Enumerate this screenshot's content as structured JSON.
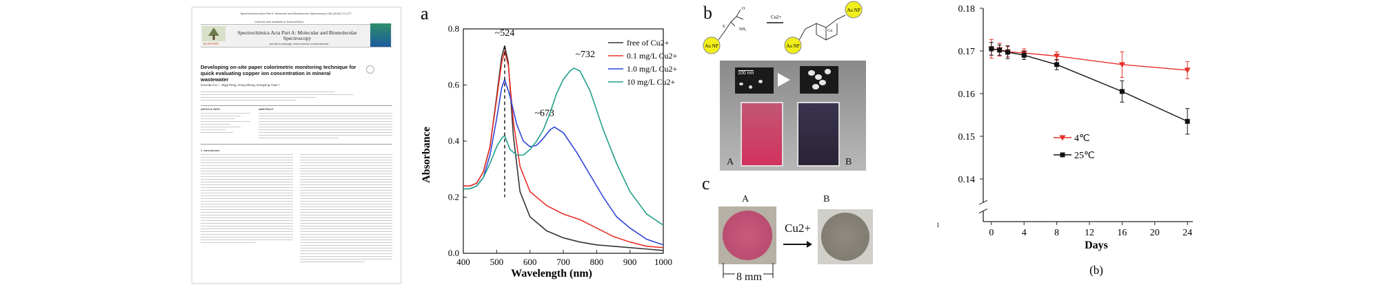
{
  "paper": {
    "journal_top_line": "Spectrochimica Acta Part A: Molecular and Biomolecular Spectroscopy 188 (2018) 271-277",
    "contents_line": "Contents lists available at ScienceDirect",
    "journal_title": "Spectrochimica Acta Part A: Molecular and Biomolecular Spectroscopy",
    "journal_homepage": "journal homepage: www.elsevier.com/locate/saa",
    "publisher": "ELSEVIER",
    "title": "Developing on-site paper colorimetric monitoring technique for quick evaluating copper ion concentration in mineral wastewater",
    "authors": "Guoxian Liu *, Jingji Peng, Hong Zheng, Dongxing Yuan *",
    "article_info_heading": "ARTICLE INFO",
    "abstract_heading": "ABSTRACT",
    "introduction_heading": "1. Introduction"
  },
  "panel_a": {
    "letter": "a",
    "chart_data": {
      "type": "line",
      "xlabel": "Wavelength (nm)",
      "ylabel": "Absorbance",
      "xlim": [
        400,
        1000
      ],
      "ylim": [
        0.0,
        0.8
      ],
      "xticks": [
        400,
        500,
        600,
        700,
        800,
        900,
        1000
      ],
      "yticks": [
        0.0,
        0.2,
        0.4,
        0.6,
        0.8
      ],
      "annotations": [
        "~524",
        "~673",
        "~732"
      ],
      "legend": "top-right",
      "series": [
        {
          "name": "free of Cu2+",
          "color": "#333333",
          "x": [
            400,
            420,
            440,
            460,
            480,
            500,
            515,
            524,
            535,
            550,
            570,
            600,
            650,
            700,
            750,
            800,
            850,
            900,
            950,
            1000
          ],
          "y": [
            0.24,
            0.24,
            0.25,
            0.29,
            0.38,
            0.56,
            0.7,
            0.74,
            0.68,
            0.42,
            0.22,
            0.13,
            0.08,
            0.055,
            0.04,
            0.03,
            0.025,
            0.02,
            0.015,
            0.01
          ]
        },
        {
          "name": "0.1 mg/L Cu2+",
          "color": "#e8302a",
          "x": [
            400,
            420,
            440,
            460,
            480,
            500,
            515,
            524,
            535,
            550,
            570,
            600,
            650,
            700,
            750,
            800,
            850,
            900,
            950,
            1000
          ],
          "y": [
            0.24,
            0.24,
            0.25,
            0.29,
            0.38,
            0.55,
            0.68,
            0.72,
            0.67,
            0.47,
            0.31,
            0.22,
            0.17,
            0.14,
            0.12,
            0.09,
            0.06,
            0.04,
            0.025,
            0.02
          ]
        },
        {
          "name": "1.0 mg/L Cu2+",
          "color": "#2d44d8",
          "x": [
            400,
            420,
            440,
            460,
            480,
            500,
            515,
            524,
            540,
            560,
            580,
            600,
            620,
            640,
            660,
            673,
            700,
            740,
            780,
            820,
            860,
            900,
            950,
            1000
          ],
          "y": [
            0.23,
            0.23,
            0.24,
            0.27,
            0.35,
            0.48,
            0.59,
            0.62,
            0.56,
            0.46,
            0.4,
            0.38,
            0.385,
            0.41,
            0.44,
            0.45,
            0.43,
            0.36,
            0.28,
            0.2,
            0.13,
            0.09,
            0.05,
            0.03
          ]
        },
        {
          "name": "10  mg/L Cu2+",
          "color": "#1f9f8a",
          "x": [
            400,
            420,
            440,
            460,
            480,
            500,
            515,
            524,
            540,
            560,
            580,
            600,
            620,
            640,
            660,
            680,
            700,
            720,
            732,
            750,
            780,
            820,
            860,
            900,
            950,
            1000
          ],
          "y": [
            0.23,
            0.23,
            0.24,
            0.27,
            0.32,
            0.38,
            0.41,
            0.42,
            0.37,
            0.35,
            0.35,
            0.37,
            0.4,
            0.44,
            0.5,
            0.57,
            0.62,
            0.65,
            0.66,
            0.65,
            0.58,
            0.44,
            0.32,
            0.22,
            0.14,
            0.1
          ]
        }
      ]
    }
  },
  "panel_b": {
    "letter": "b",
    "cu_label": "Cu2+",
    "au_np_label": "Au NP",
    "scale_label": "100 nm",
    "label_A": "A",
    "label_B": "B"
  },
  "panel_c": {
    "letter": "c",
    "label_A": "A",
    "label_B": "B",
    "cu_label": "Cu2+",
    "size_label": "8 mm"
  },
  "panel_right": {
    "caption": "(b)",
    "chart_data": {
      "type": "line",
      "xlabel": "Days",
      "ylabel": "",
      "xlim": [
        -1,
        25
      ],
      "ylim": [
        0.13,
        0.18
      ],
      "xticks": [
        0,
        4,
        8,
        12,
        16,
        20,
        24
      ],
      "yticks": [
        0.14,
        0.15,
        0.16,
        0.17,
        0.18
      ],
      "axis_break": true,
      "stray_label": "1",
      "legend": "center-left",
      "series": [
        {
          "name": "4℃",
          "color": "#e8302a",
          "marker": "triangle-down",
          "x": [
            0,
            1,
            2,
            4,
            8,
            16,
            24
          ],
          "y": [
            0.1705,
            0.1703,
            0.1698,
            0.1695,
            0.1688,
            0.1668,
            0.1655
          ],
          "err": [
            0.0022,
            0.0015,
            0.0012,
            0.001,
            0.001,
            0.003,
            0.002
          ]
        },
        {
          "name": "25℃",
          "color": "#111111",
          "marker": "square",
          "x": [
            0,
            1,
            2,
            4,
            8,
            16,
            24
          ],
          "y": [
            0.1705,
            0.1702,
            0.1697,
            0.169,
            0.1668,
            0.1605,
            0.1535
          ],
          "err": [
            0.0015,
            0.0012,
            0.0015,
            0.001,
            0.0012,
            0.0025,
            0.003
          ]
        }
      ]
    }
  }
}
